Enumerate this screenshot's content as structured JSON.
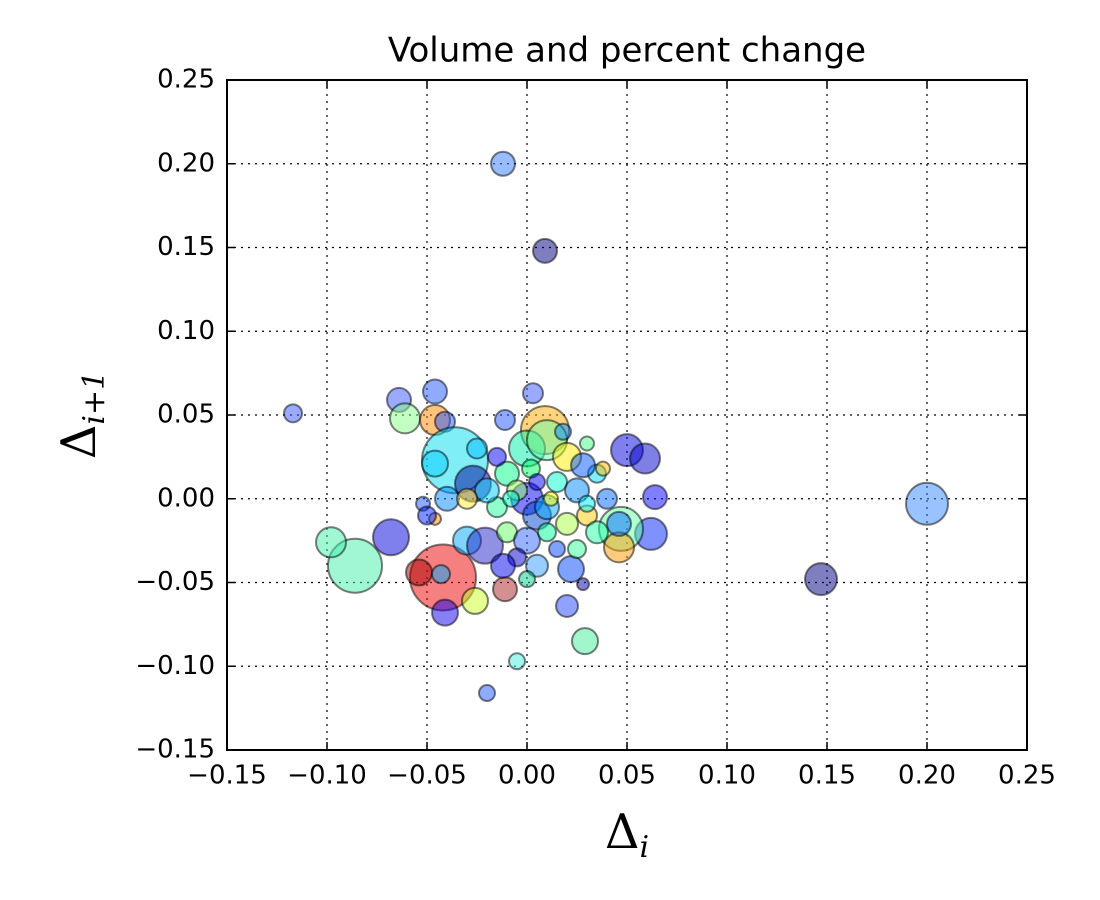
{
  "chart_data": {
    "type": "scatter",
    "title": "Volume and percent change",
    "xlabel": [
      "Δ",
      "i"
    ],
    "ylabel": [
      "Δ",
      "i+1"
    ],
    "xlim": [
      -0.15,
      0.25
    ],
    "ylim": [
      -0.15,
      0.25
    ],
    "xticks": [
      {
        "value": -0.15,
        "label": "−0.15"
      },
      {
        "value": -0.1,
        "label": "−0.10"
      },
      {
        "value": -0.05,
        "label": "−0.05"
      },
      {
        "value": 0,
        "label": "0.00"
      },
      0.05,
      {
        "value": 0.1,
        "label": "0.10"
      },
      0.15,
      {
        "value": 0.2,
        "label": "0.20"
      },
      0.25
    ],
    "yticks": [
      {
        "value": -0.15,
        "label": "−0.15"
      },
      {
        "value": -0.1,
        "label": "−0.10"
      },
      {
        "value": -0.05,
        "label": "−0.05"
      },
      {
        "value": 0,
        "label": "0.00"
      },
      0.05,
      {
        "value": 0.1,
        "label": "0.10"
      },
      0.15,
      {
        "value": 0.2,
        "label": "0.20"
      },
      0.25
    ],
    "grid": true,
    "alpha": 0.5,
    "x": [
      -0.012,
      0.009,
      -0.117,
      0.2,
      0.147,
      -0.042,
      -0.086,
      -0.098,
      -0.068,
      -0.041,
      -0.026,
      -0.011,
      0.02,
      0.029,
      -0.005,
      -0.02,
      -0.064,
      -0.046,
      -0.061,
      -0.046,
      -0.041,
      0.003,
      -0.011,
      0.009,
      -0.036,
      -0.046,
      0.05,
      0.059,
      0.064,
      0.062,
      0.047,
      0.046,
      0.046,
      0.022,
      0.028,
      -0.027,
      -0.03,
      -0.021,
      -0.054,
      -0.043,
      -0.046,
      -0.052,
      -0.05,
      -0.04,
      0.0,
      0.01,
      0.02,
      -0.01,
      0.0,
      0.005,
      0.01,
      -0.005,
      0.015,
      0.025,
      0.03,
      0.035,
      -0.015,
      -0.02,
      -0.01,
      0.0,
      0.01,
      0.02,
      -0.005,
      0.005,
      -0.012,
      0.03,
      0.038,
      0.04,
      -0.025,
      -0.015,
      0.002,
      0.015,
      -0.03,
      0.025,
      0.035,
      0.005,
      -0.008,
      0.012,
      0.018,
      0.03,
      0.0,
      0.028
    ],
    "y": [
      0.2,
      0.148,
      0.051,
      -0.003,
      -0.048,
      -0.047,
      -0.04,
      -0.026,
      -0.023,
      -0.068,
      -0.061,
      -0.054,
      -0.064,
      -0.085,
      -0.097,
      -0.116,
      0.059,
      0.064,
      0.048,
      0.047,
      0.046,
      0.063,
      0.047,
      0.041,
      0.023,
      0.021,
      0.029,
      0.024,
      0.001,
      -0.021,
      -0.018,
      -0.029,
      -0.015,
      -0.042,
      -0.051,
      0.009,
      -0.025,
      -0.028,
      -0.044,
      -0.045,
      -0.012,
      -0.003,
      -0.01,
      0.0,
      0.03,
      0.035,
      0.025,
      0.015,
      0.0,
      -0.01,
      -0.005,
      0.005,
      0.01,
      0.005,
      -0.01,
      0.015,
      -0.005,
      0.005,
      -0.02,
      -0.025,
      -0.02,
      -0.015,
      -0.035,
      -0.04,
      -0.04,
      0.033,
      0.018,
      0.0,
      0.03,
      0.025,
      0.018,
      -0.03,
      0.0,
      -0.03,
      -0.02,
      0.01,
      0.0,
      0.0,
      0.04,
      -0.003,
      -0.048,
      0.02
    ],
    "sizes": [
      12,
      12,
      9,
      21,
      16,
      33,
      27,
      15,
      18,
      13,
      13,
      12,
      11,
      13,
      8,
      8,
      12,
      12,
      15,
      15,
      10,
      10,
      10,
      24,
      33,
      13,
      16,
      15,
      12,
      16,
      22,
      15,
      12,
      13,
      6,
      18,
      14,
      18,
      13,
      9,
      6,
      7,
      9,
      12,
      18,
      20,
      14,
      12,
      16,
      14,
      12,
      10,
      10,
      12,
      10,
      9,
      10,
      12,
      10,
      13,
      9,
      11,
      9,
      11,
      12,
      7,
      7,
      10,
      10,
      9,
      9,
      8,
      10,
      9,
      11,
      8,
      8,
      7,
      8,
      8,
      8,
      12
    ],
    "colors": [
      "#3377ff",
      "#000080",
      "#3355ff",
      "#3388ff",
      "#000080",
      "#ee0000",
      "#44eeaa",
      "#44eeaa",
      "#0000dd",
      "#1100ee",
      "#ccff22",
      "#aa2222",
      "#2244ff",
      "#44ee99",
      "#44eedd",
      "#2255ff",
      "#3355ff",
      "#2255ff",
      "#88ff88",
      "#ff8800",
      "#2255ff",
      "#3355ff",
      "#2255ff",
      "#ffaa00",
      "#00ddee",
      "#00ccff",
      "#0000dd",
      "#0000cc",
      "#0000ff",
      "#0022ff",
      "#66ffaa",
      "#ff9900",
      "#0066ff",
      "#0044ff",
      "#0000aa",
      "#000099",
      "#00aaff",
      "#2222cc",
      "#aa0000",
      "#00aaff",
      "#ff8800",
      "#2255ff",
      "#0022ff",
      "#0088ff",
      "#00eeaa",
      "#66ffaa",
      "#ffee00",
      "#00ff88",
      "#0000ff",
      "#0044cc",
      "#00aaff",
      "#99ff66",
      "#00ffcc",
      "#0088ff",
      "#ffcc00",
      "#00ddff",
      "#22ff99",
      "#00ccff",
      "#66ff66",
      "#3366ff",
      "#00ff99",
      "#aaff44",
      "#0000cc",
      "#3399ff",
      "#0000ee",
      "#44ff88",
      "#ffbb00",
      "#0066ff",
      "#00bbff",
      "#0000ff",
      "#00ff66",
      "#0044ff",
      "#ffee33",
      "#33ff99",
      "#22ffaa",
      "#0000ff",
      "#00ffcc",
      "#ffff00",
      "#0088ff",
      "#00eeff",
      "#00cc88",
      "#0055ff"
    ]
  }
}
